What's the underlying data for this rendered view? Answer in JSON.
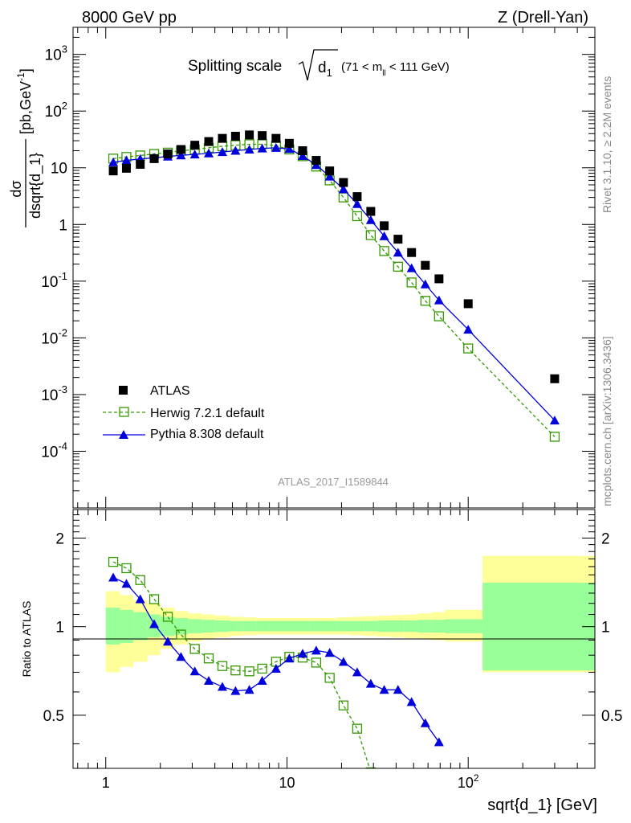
{
  "header": {
    "left": "8000 GeV pp",
    "right": "Z (Drell-Yan)"
  },
  "side_labels": {
    "rivet": "Rivet 3.1.10, ≥ 2.2M events",
    "mcplots": "mcplots.cern.ch [arXiv:1306.3436]"
  },
  "colors": {
    "atlas": "#000000",
    "herwig": "#339900",
    "pythia": "#0000dd",
    "band_inner": "#99ff99",
    "band_outer": "#ffff99"
  },
  "chart_data": [
    {
      "type": "scatter",
      "title_main": "Splitting scale",
      "title_sub": "(71 < m",
      "title_sub_idx": "ll",
      "title_sub_end": " < 111 GeV)",
      "ylabel_num": "dσ",
      "ylabel_den": "dsqrt{d_1}",
      "ylabel_unit": "[pb,GeV",
      "ylabel_unit_sup": "-1",
      "ylabel_unit_end": "]",
      "watermark": "ATLAS_2017_I1589844",
      "x_scale": "log",
      "y_scale": "log",
      "xlim": [
        0.66,
        500
      ],
      "ylim": [
        1e-05,
        3000
      ],
      "y_ticks": [
        {
          "v": 0.0001,
          "label": "10",
          "exp": "-4"
        },
        {
          "v": 0.001,
          "label": "10",
          "exp": "-3"
        },
        {
          "v": 0.01,
          "label": "10",
          "exp": "-2"
        },
        {
          "v": 0.1,
          "label": "10",
          "exp": "-1"
        },
        {
          "v": 1,
          "label": "1",
          "exp": ""
        },
        {
          "v": 10,
          "label": "10",
          "exp": ""
        },
        {
          "v": 100,
          "label": "10",
          "exp": "2"
        },
        {
          "v": 1000,
          "label": "10",
          "exp": "3"
        }
      ],
      "legend": [
        {
          "name": "ATLAS",
          "key": "atlas"
        },
        {
          "name": "Herwig 7.2.1 default",
          "key": "herwig"
        },
        {
          "name": "Pythia 8.308 default",
          "key": "pythia"
        }
      ],
      "series": [
        {
          "name": "ATLAS",
          "key": "atlas",
          "x": [
            1.1,
            1.3,
            1.55,
            1.85,
            2.2,
            2.6,
            3.1,
            3.7,
            4.4,
            5.2,
            6.2,
            7.3,
            8.7,
            10.3,
            12.2,
            14.5,
            17.2,
            20.5,
            24.4,
            29,
            34.4,
            41,
            48.7,
            58,
            69,
            100,
            300
          ],
          "y": [
            8.8,
            9.8,
            11.5,
            14.5,
            17.5,
            21,
            25,
            29,
            33,
            36,
            38,
            37,
            33,
            27,
            20,
            13.5,
            8.8,
            5.5,
            3.1,
            1.7,
            0.95,
            0.55,
            0.32,
            0.19,
            0.11,
            0.04,
            0.0019
          ]
        },
        {
          "name": "Herwig 7.2.1 default",
          "key": "herwig",
          "x": [
            1.1,
            1.3,
            1.55,
            1.85,
            2.2,
            2.6,
            3.1,
            3.7,
            4.4,
            5.2,
            6.2,
            7.3,
            8.7,
            10.3,
            12.2,
            14.5,
            17.2,
            20.5,
            24.4,
            29,
            34.4,
            41,
            48.7,
            58,
            69,
            100,
            300
          ],
          "y": [
            14.5,
            15.5,
            16.5,
            17.5,
            18.5,
            20,
            21,
            22.5,
            24,
            25,
            26,
            26,
            24.5,
            21,
            16,
            10.5,
            6,
            3,
            1.4,
            0.65,
            0.34,
            0.18,
            0.095,
            0.045,
            0.024,
            0.0065,
            0.00018
          ]
        },
        {
          "name": "Pythia 8.308 default",
          "key": "pythia",
          "x": [
            1.1,
            1.3,
            1.55,
            1.85,
            2.2,
            2.6,
            3.1,
            3.7,
            4.4,
            5.2,
            6.2,
            7.3,
            8.7,
            10.3,
            12.2,
            14.5,
            17.2,
            20.5,
            24.4,
            29,
            34.4,
            41,
            48.7,
            58,
            69,
            100,
            300
          ],
          "y": [
            12.5,
            13.5,
            14.3,
            15.0,
            15.8,
            16.6,
            17.2,
            18.0,
            19.0,
            20.0,
            21.0,
            22.0,
            22.5,
            21.5,
            16.2,
            11.2,
            7.0,
            4.2,
            2.3,
            1.2,
            0.62,
            0.32,
            0.17,
            0.088,
            0.046,
            0.014,
            0.00035
          ]
        }
      ]
    },
    {
      "type": "line",
      "ylabel": "Ratio to ATLAS",
      "xlabel": "sqrt{d_1} [GeV]",
      "x_scale": "log",
      "xlim": [
        0.66,
        500
      ],
      "ylim": [
        0.33,
        2.5
      ],
      "y_ticks": [
        0.5,
        1,
        2
      ],
      "x_ticks": [
        {
          "v": 1,
          "label": "1",
          "exp": ""
        },
        {
          "v": 10,
          "label": "10",
          "exp": ""
        },
        {
          "v": 100,
          "label": "10",
          "exp": "2"
        }
      ],
      "uncertainty_band": {
        "edges": [
          1,
          1.2,
          1.42,
          1.7,
          2.0,
          2.4,
          2.85,
          3.4,
          4.0,
          4.8,
          5.7,
          6.8,
          8.0,
          9.5,
          11.3,
          13.4,
          15.9,
          18.9,
          22.4,
          26.6,
          31.6,
          37.5,
          44.5,
          52.8,
          62.6,
          74.3,
          120,
          500
        ],
        "outer_lo": [
          0.7,
          0.73,
          0.76,
          0.8,
          0.84,
          0.87,
          0.89,
          0.91,
          0.92,
          0.93,
          0.935,
          0.94,
          0.94,
          0.94,
          0.94,
          0.94,
          0.94,
          0.94,
          0.935,
          0.93,
          0.925,
          0.92,
          0.915,
          0.91,
          0.9,
          0.89,
          0.7
        ],
        "outer_hi": [
          1.32,
          1.28,
          1.23,
          1.2,
          1.16,
          1.13,
          1.11,
          1.1,
          1.09,
          1.08,
          1.075,
          1.07,
          1.07,
          1.07,
          1.07,
          1.07,
          1.07,
          1.075,
          1.08,
          1.085,
          1.09,
          1.095,
          1.1,
          1.11,
          1.12,
          1.14,
          1.74
        ],
        "inner_lo": [
          0.87,
          0.88,
          0.9,
          0.92,
          0.93,
          0.94,
          0.95,
          0.955,
          0.96,
          0.965,
          0.965,
          0.965,
          0.965,
          0.965,
          0.965,
          0.965,
          0.965,
          0.965,
          0.965,
          0.965,
          0.96,
          0.96,
          0.96,
          0.955,
          0.955,
          0.95,
          0.71
        ],
        "inner_hi": [
          1.16,
          1.14,
          1.12,
          1.1,
          1.08,
          1.07,
          1.06,
          1.055,
          1.05,
          1.045,
          1.045,
          1.045,
          1.045,
          1.045,
          1.045,
          1.045,
          1.045,
          1.045,
          1.045,
          1.045,
          1.05,
          1.05,
          1.05,
          1.055,
          1.055,
          1.06,
          1.41
        ]
      },
      "series": [
        {
          "name": "Herwig 7.2.1 default",
          "key": "herwig",
          "x": [
            1.1,
            1.3,
            1.55,
            1.85,
            2.2,
            2.6,
            3.1,
            3.7,
            4.4,
            5.2,
            6.2,
            7.3,
            8.7,
            10.3,
            12.2,
            14.5,
            17.2,
            20.5,
            24.4,
            29
          ],
          "y": [
            1.66,
            1.58,
            1.44,
            1.24,
            1.08,
            0.94,
            0.84,
            0.78,
            0.735,
            0.71,
            0.705,
            0.72,
            0.76,
            0.79,
            0.785,
            0.755,
            0.67,
            0.54,
            0.45,
            0.32
          ]
        },
        {
          "name": "Pythia 8.308 default",
          "key": "pythia",
          "x": [
            1.1,
            1.3,
            1.55,
            1.85,
            2.2,
            2.6,
            3.1,
            3.7,
            4.4,
            5.2,
            6.2,
            7.3,
            8.7,
            10.3,
            12.2,
            14.5,
            17.2,
            20.5,
            24.4,
            29,
            34.4,
            41,
            48.7,
            58,
            69
          ],
          "y": [
            1.47,
            1.4,
            1.24,
            1.02,
            0.89,
            0.79,
            0.705,
            0.655,
            0.625,
            0.605,
            0.61,
            0.655,
            0.72,
            0.78,
            0.81,
            0.83,
            0.815,
            0.76,
            0.7,
            0.64,
            0.61,
            0.61,
            0.555,
            0.47,
            0.405
          ]
        }
      ]
    }
  ]
}
